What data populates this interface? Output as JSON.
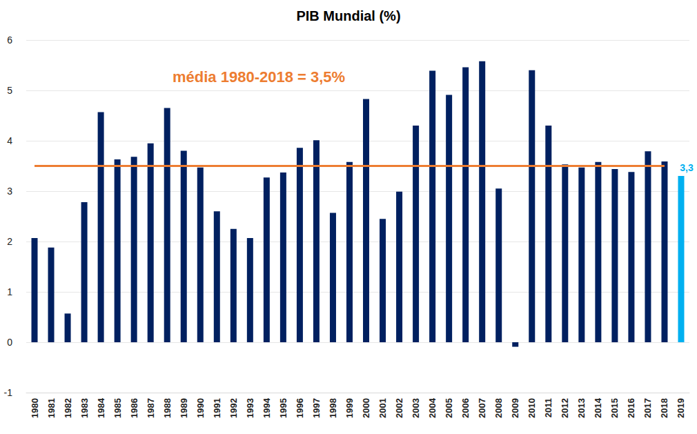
{
  "chart_data": {
    "type": "bar",
    "title": "PIB Mundial (%)",
    "categories": [
      "1980",
      "1981",
      "1982",
      "1983",
      "1984",
      "1985",
      "1986",
      "1987",
      "1988",
      "1989",
      "1990",
      "1991",
      "1992",
      "1993",
      "1994",
      "1995",
      "1996",
      "1997",
      "1998",
      "1999",
      "2000",
      "2001",
      "2002",
      "2003",
      "2004",
      "2005",
      "2006",
      "2007",
      "2008",
      "2009",
      "2010",
      "2011",
      "2012",
      "2013",
      "2014",
      "2015",
      "2016",
      "2017",
      "2018",
      "2019"
    ],
    "values": [
      2.07,
      1.88,
      0.57,
      2.78,
      4.57,
      3.63,
      3.68,
      3.95,
      4.65,
      3.8,
      3.47,
      2.6,
      2.25,
      2.07,
      3.27,
      3.37,
      3.86,
      4.01,
      2.57,
      3.58,
      4.83,
      2.45,
      2.99,
      4.3,
      5.39,
      4.91,
      5.46,
      5.58,
      3.05,
      -0.09,
      5.4,
      4.3,
      3.53,
      3.47,
      3.58,
      3.44,
      3.38,
      3.79,
      3.59,
      3.3
    ],
    "value_labels": [
      null,
      null,
      null,
      null,
      null,
      null,
      null,
      null,
      null,
      null,
      null,
      null,
      null,
      null,
      null,
      null,
      null,
      null,
      null,
      null,
      null,
      null,
      null,
      null,
      null,
      null,
      null,
      null,
      null,
      null,
      null,
      null,
      null,
      null,
      null,
      null,
      null,
      null,
      null,
      "3,3"
    ],
    "colors": [
      "#002060",
      "#002060",
      "#002060",
      "#002060",
      "#002060",
      "#002060",
      "#002060",
      "#002060",
      "#002060",
      "#002060",
      "#002060",
      "#002060",
      "#002060",
      "#002060",
      "#002060",
      "#002060",
      "#002060",
      "#002060",
      "#002060",
      "#002060",
      "#002060",
      "#002060",
      "#002060",
      "#002060",
      "#002060",
      "#002060",
      "#002060",
      "#002060",
      "#002060",
      "#002060",
      "#002060",
      "#002060",
      "#002060",
      "#002060",
      "#002060",
      "#002060",
      "#002060",
      "#002060",
      "#002060",
      "#00B0F0"
    ],
    "reference_line": {
      "value": 3.5,
      "from": "1980",
      "to": "2018",
      "label": "média 1980-2018 = 3,5%",
      "color": "#ED7D31"
    },
    "ylim": [
      -1,
      6
    ],
    "yticks": [
      -1,
      0,
      1,
      2,
      3,
      4,
      5,
      6
    ],
    "grid": true
  }
}
